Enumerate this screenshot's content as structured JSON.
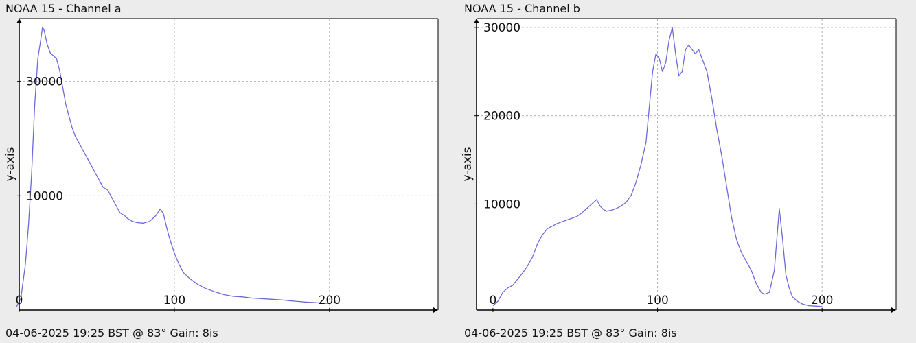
{
  "charts": [
    {
      "title": "NOAA 15 - Channel a",
      "footer": "04-06-2025 19:25 BST @ 83° Gain: 8is"
    },
    {
      "title": "NOAA 15 - Channel b",
      "footer": "04-06-2025 19:25 BST @ 83° Gain: 8is"
    }
  ],
  "colors": {
    "line": "#6a6ad8",
    "grid": "#b0b0b0",
    "axis": "#000000",
    "plot_bg": "#ffffff",
    "page_bg": "#ececec"
  },
  "chart_data": [
    {
      "type": "line",
      "title": "NOAA 15 - Channel a",
      "xlabel": "",
      "ylabel": "y-axis",
      "xlim": [
        0,
        270
      ],
      "ylim": [
        -10000,
        41000
      ],
      "xticks": [
        0,
        100,
        200
      ],
      "yticks": [
        10000,
        30000
      ],
      "grid": true,
      "x": [
        -2,
        1,
        4,
        6,
        8,
        10,
        12,
        14,
        15,
        16,
        18,
        20,
        22,
        24,
        26,
        28,
        30,
        32,
        34,
        36,
        38,
        40,
        42,
        45,
        48,
        51,
        54,
        57,
        60,
        63,
        65,
        68,
        70,
        73,
        76,
        80,
        84,
        88,
        91,
        93,
        95,
        97,
        100,
        103,
        106,
        110,
        115,
        120,
        126,
        132,
        138,
        144,
        150,
        156,
        162,
        168,
        172,
        176,
        180,
        184,
        188,
        191,
        194,
        197,
        200
      ],
      "series": [
        {
          "name": "",
          "values": [
            -9500,
            -8000,
            -2000,
            5000,
            14000,
            26000,
            34000,
            37500,
            39500,
            39000,
            36500,
            35000,
            34500,
            34000,
            32000,
            29000,
            26000,
            24000,
            22000,
            20500,
            19500,
            18500,
            17500,
            16000,
            14500,
            13000,
            11500,
            11000,
            9500,
            8000,
            7000,
            6500,
            6000,
            5500,
            5300,
            5200,
            5500,
            6500,
            7700,
            6800,
            4500,
            2500,
            0,
            -2000,
            -3500,
            -4500,
            -5500,
            -6200,
            -6800,
            -7300,
            -7600,
            -7700,
            -7900,
            -8000,
            -8100,
            -8200,
            -8300,
            -8400,
            -8500,
            -8600,
            -8650,
            -8700,
            -8750,
            -8800,
            -8850
          ]
        }
      ]
    },
    {
      "type": "line",
      "title": "NOAA 15 - Channel b",
      "xlabel": "",
      "ylabel": "y-axis",
      "xlim": [
        -10,
        245
      ],
      "ylim": [
        -2000,
        31000
      ],
      "xticks": [
        0,
        100,
        200
      ],
      "yticks": [
        10000,
        20000,
        30000
      ],
      "grid": true,
      "x": [
        0,
        3,
        6,
        9,
        12,
        15,
        18,
        21,
        24,
        27,
        30,
        33,
        36,
        39,
        42,
        45,
        48,
        51,
        54,
        57,
        60,
        63,
        65,
        67,
        69,
        72,
        75,
        78,
        81,
        84,
        87,
        90,
        93,
        95,
        97,
        99,
        101,
        103,
        105,
        107,
        109,
        111,
        113,
        115,
        117,
        119,
        121,
        123,
        125,
        127,
        130,
        133,
        136,
        139,
        142,
        145,
        148,
        151,
        154,
        157,
        160,
        163,
        165,
        168,
        171,
        174,
        176,
        178,
        180,
        182,
        185,
        188,
        192,
        196,
        200
      ],
      "series": [
        {
          "name": "",
          "values": [
            -1500,
            -1000,
            0,
            500,
            800,
            1500,
            2200,
            3000,
            4000,
            5500,
            6500,
            7200,
            7500,
            7800,
            8000,
            8200,
            8400,
            8600,
            9000,
            9500,
            10000,
            10500,
            9800,
            9400,
            9200,
            9300,
            9500,
            9800,
            10200,
            11000,
            12500,
            14500,
            17000,
            21000,
            25000,
            27000,
            26500,
            25000,
            26000,
            28500,
            30000,
            27000,
            24500,
            25000,
            27500,
            28000,
            27500,
            27000,
            27500,
            26500,
            25000,
            22000,
            18500,
            15500,
            12000,
            8500,
            6000,
            4500,
            3500,
            2500,
            1000,
            0,
            -200,
            0,
            2500,
            9500,
            6000,
            2000,
            500,
            -500,
            -1000,
            -1300,
            -1500,
            -1550,
            -1600
          ]
        }
      ]
    }
  ]
}
